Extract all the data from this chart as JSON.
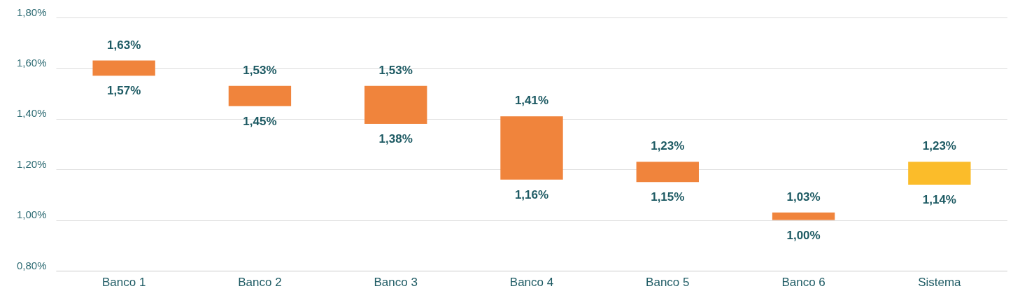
{
  "chart_data": {
    "type": "bar",
    "categories": [
      "Banco 1",
      "Banco 2",
      "Banco 3",
      "Banco 4",
      "Banco 5",
      "Banco 6",
      "Sistema"
    ],
    "base": [
      1.57,
      1.45,
      1.38,
      1.16,
      1.15,
      1.0,
      1.14
    ],
    "values": [
      0.06,
      0.08,
      0.15,
      0.25,
      0.08,
      0.03,
      0.09
    ],
    "colors": [
      "#f0843c",
      "#f0843c",
      "#f0843c",
      "#f0843c",
      "#f0843c",
      "#f0843c",
      "#fbbc2a"
    ],
    "ylim": [
      0.8,
      1.8
    ],
    "yticks": [
      {
        "value": 0.8,
        "label": "0,80%"
      },
      {
        "value": 1.0,
        "label": "1,00%"
      },
      {
        "value": 1.2,
        "label": "1,20%"
      },
      {
        "value": 1.4,
        "label": "1,40%"
      },
      {
        "value": 1.6,
        "label": "1,60%"
      },
      {
        "value": 1.8,
        "label": "1,80%"
      }
    ],
    "grid": "y",
    "annotations": [
      {
        "text": "1,63%",
        "x": "Banco 1",
        "y": 1.63
      },
      {
        "text": "1,57%",
        "x": "Banco 1",
        "y": 1.57
      },
      {
        "text": "1,53%",
        "x": "Banco 2",
        "y": 1.53
      },
      {
        "text": "1,45%",
        "x": "Banco 2",
        "y": 1.45
      },
      {
        "text": "1,53%",
        "x": "Banco 3",
        "y": 1.53
      },
      {
        "text": "1,38%",
        "x": "Banco 3",
        "y": 1.38
      },
      {
        "text": "1,41%",
        "x": "Banco 4",
        "y": 1.41
      },
      {
        "text": "1,16%",
        "x": "Banco 4",
        "y": 1.16
      },
      {
        "text": "1,23%",
        "x": "Banco 5",
        "y": 1.23
      },
      {
        "text": "1,15%",
        "x": "Banco 5",
        "y": 1.15
      },
      {
        "text": "1,03%",
        "x": "Banco 6",
        "y": 1.03
      },
      {
        "text": "1,00%",
        "x": "Banco 6",
        "y": 1.0
      },
      {
        "text": "1,23%",
        "x": "Sistema",
        "y": 1.23
      },
      {
        "text": "1,14%",
        "x": "Sistema",
        "y": 1.14
      }
    ]
  }
}
